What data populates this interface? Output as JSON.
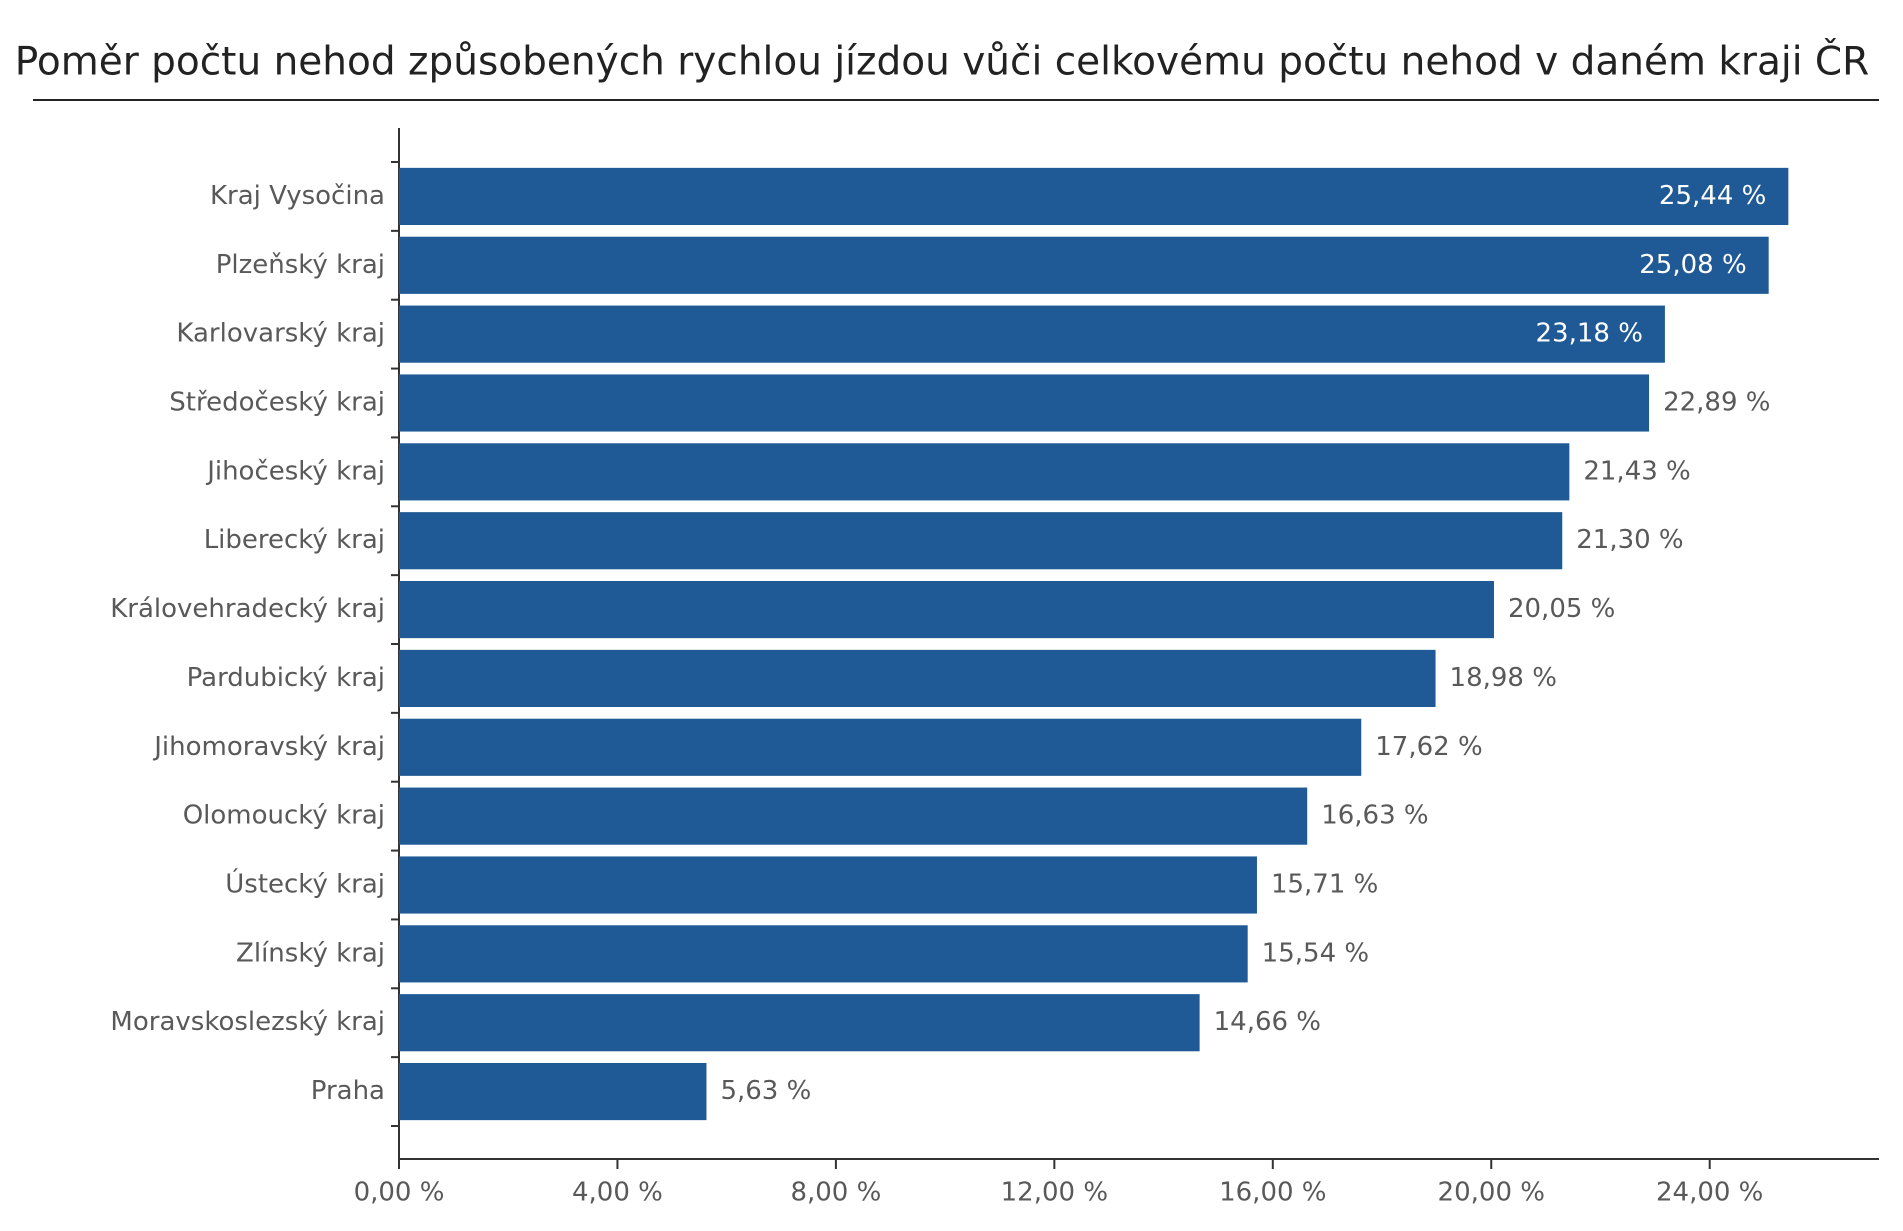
{
  "chart_data": {
    "type": "barh",
    "title": "Poměr počtu nehod způsobených rychlou jízdou vůči celkovému počtu nehod v daném kraji ČR",
    "categories": [
      "Kraj Vysočina",
      "Plzeňský kraj",
      "Karlovarský kraj",
      "Středočeský kraj",
      "Jihočeský kraj",
      "Liberecký kraj",
      "Královehradecký kraj",
      "Pardubický kraj",
      "Jihomoravský kraj",
      "Olomoucký kraj",
      "Ústecký kraj",
      "Zlínský kraj",
      "Moravskoslezský kraj",
      "Praha"
    ],
    "values": [
      25.44,
      25.08,
      23.18,
      22.89,
      21.43,
      21.3,
      20.05,
      18.98,
      17.62,
      16.63,
      15.71,
      15.54,
      14.66,
      5.63
    ],
    "value_labels": [
      "25,44 %",
      "25,08 %",
      "23,18 %",
      "22,89 %",
      "21,43 %",
      "21,30 %",
      "20,05 %",
      "18,98 %",
      "17,62 %",
      "16,63 %",
      "15,71 %",
      "15,54 %",
      "14,66 %",
      "5,63 %"
    ],
    "color": "#1f5a96",
    "xlim": [
      0,
      27.1
    ],
    "xticks": [
      {
        "value": 0,
        "label": "0,00 %"
      },
      {
        "value": 4,
        "label": "4,00 %"
      },
      {
        "value": 8,
        "label": "8,00 %"
      },
      {
        "value": 12,
        "label": "12,00 %"
      },
      {
        "value": 16,
        "label": "16,00 %"
      },
      {
        "value": 20,
        "label": "20,00 %"
      },
      {
        "value": 24,
        "label": "24,00 %"
      }
    ],
    "grid": false
  }
}
